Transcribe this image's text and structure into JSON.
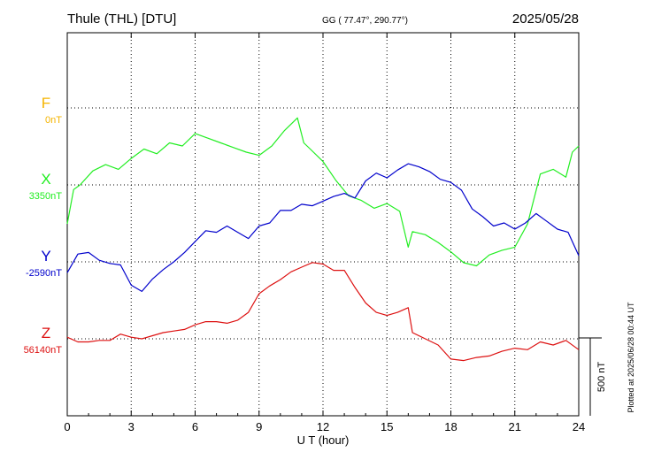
{
  "header": {
    "station": "Thule (THL)  [DTU]",
    "coords": "GG ( 77.47°, 290.77°)",
    "date": "2025/05/28"
  },
  "plotted_note": "Plotted at 2025/06/28 00:44 UT",
  "scale_label": "500 nT",
  "chart_data": {
    "type": "line",
    "title": "",
    "xlabel": "U T (hour)",
    "ylabel": "",
    "xlim": [
      0,
      24
    ],
    "x_ticks": [
      "0",
      "3",
      "6",
      "9",
      "12",
      "15",
      "18",
      "21",
      "24"
    ],
    "grid": true,
    "scale_bar_nT": 500,
    "series": [
      {
        "name": "F",
        "baseline_label": "0nT",
        "color": "#f5b400",
        "x": [],
        "y": []
      },
      {
        "name": "X",
        "baseline_label": "3350nT",
        "color": "#22ee22",
        "x": [
          0,
          0.3,
          0.6,
          1.2,
          1.8,
          2.4,
          3.0,
          3.6,
          4.2,
          4.8,
          5.4,
          6.0,
          6.6,
          7.2,
          7.8,
          8.4,
          9.0,
          9.6,
          10.2,
          10.8,
          11.1,
          11.4,
          12.0,
          12.6,
          13.2,
          13.8,
          14.4,
          15.0,
          15.6,
          16.0,
          16.2,
          16.8,
          17.4,
          18.0,
          18.6,
          19.2,
          19.8,
          20.4,
          21.0,
          21.6,
          22.2,
          22.8,
          23.4,
          23.7,
          24.0
        ],
        "y": [
          3100,
          3320,
          3350,
          3440,
          3480,
          3450,
          3520,
          3580,
          3550,
          3620,
          3600,
          3680,
          3650,
          3620,
          3590,
          3560,
          3540,
          3600,
          3700,
          3780,
          3620,
          3580,
          3500,
          3380,
          3280,
          3250,
          3200,
          3230,
          3180,
          2950,
          3050,
          3030,
          2980,
          2920,
          2850,
          2830,
          2900,
          2930,
          2950,
          3100,
          3420,
          3450,
          3400,
          3560,
          3600
        ]
      },
      {
        "name": "Y",
        "baseline_label": "-2590nT",
        "color": "#0000cc",
        "x": [
          0,
          0.5,
          1.0,
          1.5,
          2.0,
          2.5,
          3.0,
          3.5,
          4.0,
          4.5,
          5.0,
          5.5,
          6.0,
          6.5,
          7.0,
          7.5,
          8.0,
          8.5,
          9.0,
          9.5,
          10.0,
          10.5,
          11.0,
          11.5,
          12.0,
          12.5,
          13.0,
          13.5,
          14.0,
          14.5,
          15.0,
          15.5,
          16.0,
          16.5,
          17.0,
          17.5,
          18.0,
          18.5,
          19.0,
          19.5,
          20.0,
          20.5,
          21.0,
          21.5,
          22.0,
          22.5,
          23.0,
          23.5,
          24.0
        ],
        "y": [
          -2660,
          -2540,
          -2530,
          -2580,
          -2600,
          -2610,
          -2740,
          -2780,
          -2700,
          -2640,
          -2590,
          -2530,
          -2460,
          -2390,
          -2400,
          -2360,
          -2400,
          -2440,
          -2360,
          -2340,
          -2260,
          -2260,
          -2220,
          -2230,
          -2200,
          -2170,
          -2150,
          -2180,
          -2070,
          -2020,
          -2050,
          -2000,
          -1960,
          -1980,
          -2010,
          -2060,
          -2080,
          -2130,
          -2250,
          -2300,
          -2360,
          -2340,
          -2380,
          -2340,
          -2280,
          -2330,
          -2380,
          -2400,
          -2550
        ]
      },
      {
        "name": "Z",
        "baseline_label": "56140nT",
        "color": "#dd1111",
        "x": [
          0,
          0.5,
          1.0,
          1.5,
          2.0,
          2.5,
          3.0,
          3.5,
          4.0,
          4.5,
          5.0,
          5.5,
          6.0,
          6.5,
          7.0,
          7.5,
          8.0,
          8.5,
          9.0,
          9.5,
          10.0,
          10.5,
          11.0,
          11.5,
          12.0,
          12.5,
          13.0,
          13.5,
          14.0,
          14.5,
          15.0,
          15.5,
          16.0,
          16.2,
          16.8,
          17.4,
          18.0,
          18.6,
          19.2,
          19.8,
          20.4,
          21.0,
          21.6,
          22.2,
          22.8,
          23.4,
          24.0
        ],
        "y": [
          56150,
          56120,
          56120,
          56130,
          56130,
          56170,
          56150,
          56140,
          56160,
          56180,
          56190,
          56200,
          56230,
          56250,
          56250,
          56240,
          56260,
          56310,
          56430,
          56480,
          56520,
          56570,
          56600,
          56630,
          56620,
          56580,
          56580,
          56470,
          56370,
          56310,
          56290,
          56310,
          56340,
          56180,
          56140,
          56100,
          56010,
          56000,
          56020,
          56030,
          56060,
          56080,
          56070,
          56120,
          56100,
          56130,
          56070
        ]
      }
    ]
  }
}
